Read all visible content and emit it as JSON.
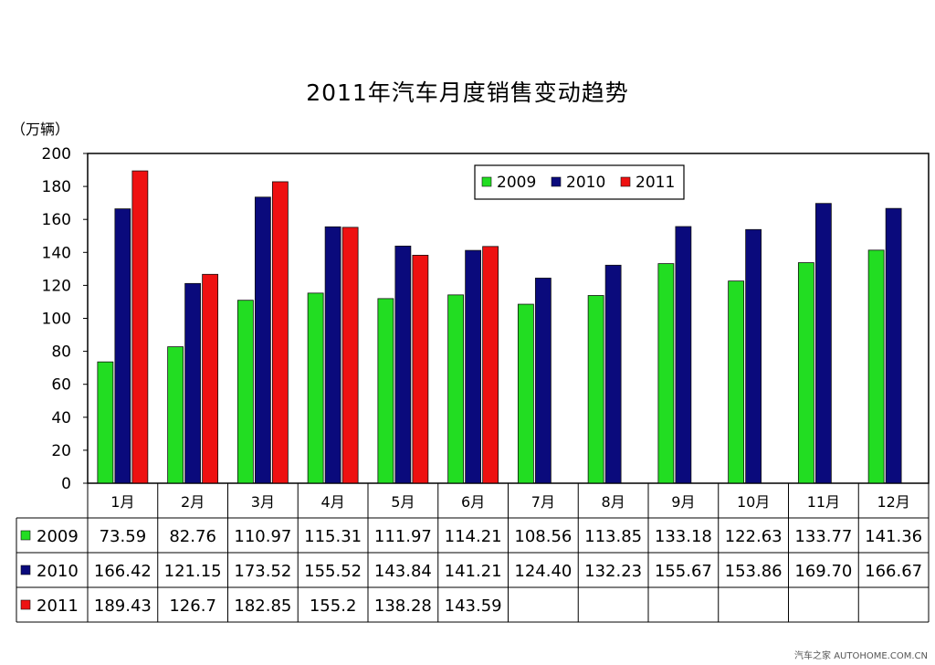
{
  "chart_data": {
    "type": "bar",
    "title": "2011年汽车月度销售变动趋势",
    "ylabel": "（万辆）",
    "ylim": [
      0,
      200
    ],
    "yticks": [
      0,
      20,
      40,
      60,
      80,
      100,
      120,
      140,
      160,
      180,
      200
    ],
    "categories": [
      "1月",
      "2月",
      "3月",
      "4月",
      "5月",
      "6月",
      "7月",
      "8月",
      "9月",
      "10月",
      "11月",
      "12月"
    ],
    "series": [
      {
        "name": "2009",
        "color": "#22dd22",
        "values": [
          73.59,
          82.76,
          110.97,
          115.31,
          111.97,
          114.21,
          108.56,
          113.85,
          133.18,
          122.63,
          133.77,
          141.36
        ],
        "labels": [
          "73.59",
          "82.76",
          "110.97",
          "115.31",
          "111.97",
          "114.21",
          "108.56",
          "113.85",
          "133.18",
          "122.63",
          "133.77",
          "141.36"
        ]
      },
      {
        "name": "2010",
        "color": "#0a0a7c",
        "values": [
          166.42,
          121.15,
          173.52,
          155.52,
          143.84,
          141.21,
          124.4,
          132.23,
          155.67,
          153.86,
          169.7,
          166.67
        ],
        "labels": [
          "166.42",
          "121.15",
          "173.52",
          "155.52",
          "143.84",
          "141.21",
          "124.40",
          "132.23",
          "155.67",
          "153.86",
          "169.70",
          "166.67"
        ]
      },
      {
        "name": "2011",
        "color": "#ee1111",
        "values": [
          189.43,
          126.7,
          182.85,
          155.2,
          138.28,
          143.59,
          null,
          null,
          null,
          null,
          null,
          null
        ],
        "labels": [
          "189.43",
          "126.7",
          "182.85",
          "155.2",
          "138.28",
          "143.59",
          "",
          "",
          "",
          "",
          "",
          ""
        ]
      }
    ],
    "legend_position": "top-right",
    "grid": false
  },
  "watermark": "汽车之家 AUTOHOME.COM.CN"
}
